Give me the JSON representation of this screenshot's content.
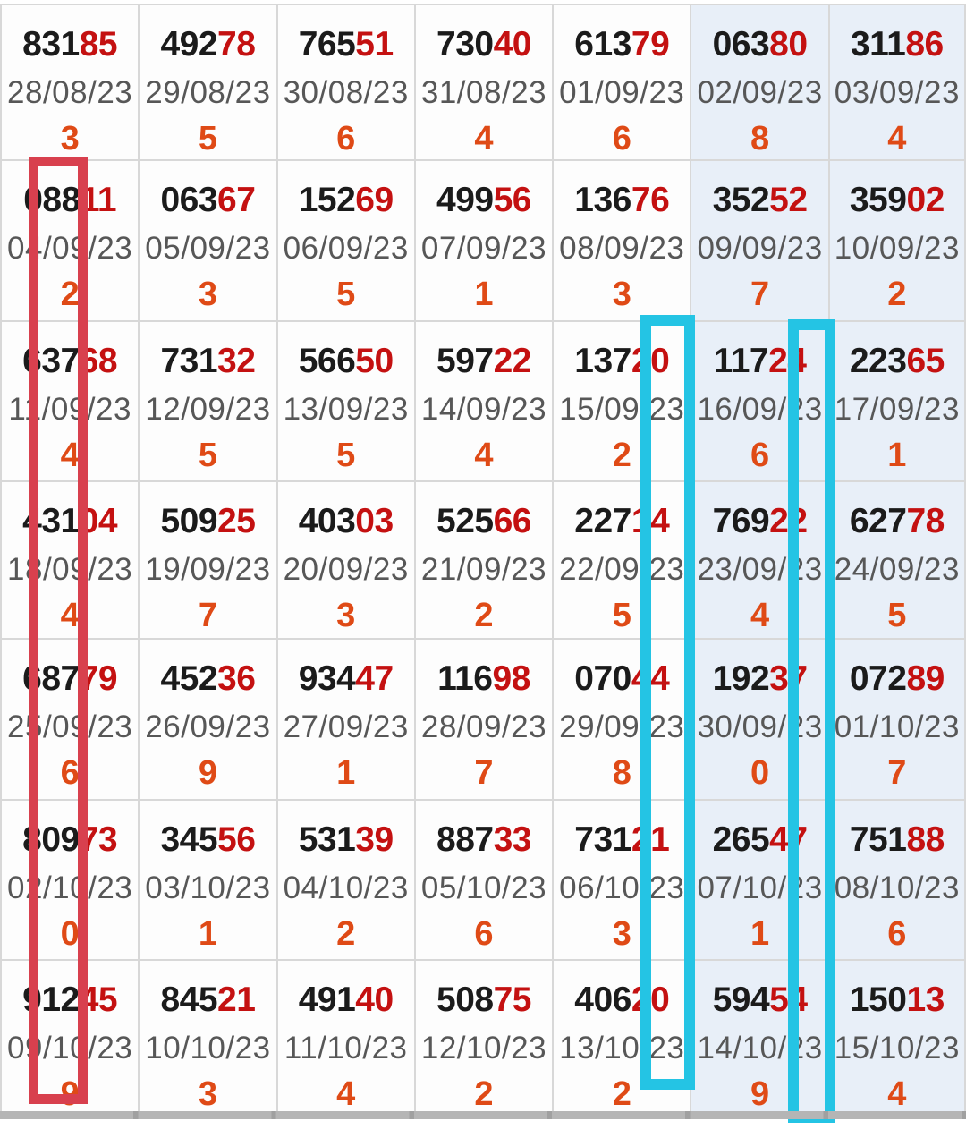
{
  "table": {
    "weekend_columns": [
      5,
      6
    ],
    "rows": [
      {
        "cells": [
          {
            "black": "831",
            "red": "85",
            "date": "28/08/23",
            "digit": "3"
          },
          {
            "black": "492",
            "red": "78",
            "date": "29/08/23",
            "digit": "5"
          },
          {
            "black": "765",
            "red": "51",
            "date": "30/08/23",
            "digit": "6"
          },
          {
            "black": "730",
            "red": "40",
            "date": "31/08/23",
            "digit": "4"
          },
          {
            "black": "613",
            "red": "79",
            "date": "01/09/23",
            "digit": "6"
          },
          {
            "black": "063",
            "red": "80",
            "date": "02/09/23",
            "digit": "8"
          },
          {
            "black": "311",
            "red": "86",
            "date": "03/09/23",
            "digit": "4"
          }
        ]
      },
      {
        "cells": [
          {
            "black": "088",
            "red": "11",
            "date": "04/09/23",
            "digit": "2"
          },
          {
            "black": "063",
            "red": "67",
            "date": "05/09/23",
            "digit": "3"
          },
          {
            "black": "152",
            "red": "69",
            "date": "06/09/23",
            "digit": "5"
          },
          {
            "black": "499",
            "red": "56",
            "date": "07/09/23",
            "digit": "1"
          },
          {
            "black": "136",
            "red": "76",
            "date": "08/09/23",
            "digit": "3"
          },
          {
            "black": "352",
            "red": "52",
            "date": "09/09/23",
            "digit": "7"
          },
          {
            "black": "359",
            "red": "02",
            "date": "10/09/23",
            "digit": "2"
          }
        ]
      },
      {
        "cells": [
          {
            "black": "637",
            "red": "68",
            "date": "11/09/23",
            "digit": "4"
          },
          {
            "black": "731",
            "red": "32",
            "date": "12/09/23",
            "digit": "5"
          },
          {
            "black": "566",
            "red": "50",
            "date": "13/09/23",
            "digit": "5"
          },
          {
            "black": "597",
            "red": "22",
            "date": "14/09/23",
            "digit": "4"
          },
          {
            "black": "137",
            "red": "20",
            "date": "15/09/23",
            "digit": "2"
          },
          {
            "black": "117",
            "red": "24",
            "date": "16/09/23",
            "digit": "6"
          },
          {
            "black": "223",
            "red": "65",
            "date": "17/09/23",
            "digit": "1"
          }
        ]
      },
      {
        "cells": [
          {
            "black": "431",
            "red": "04",
            "date": "18/09/23",
            "digit": "4"
          },
          {
            "black": "509",
            "red": "25",
            "date": "19/09/23",
            "digit": "7"
          },
          {
            "black": "403",
            "red": "03",
            "date": "20/09/23",
            "digit": "3"
          },
          {
            "black": "525",
            "red": "66",
            "date": "21/09/23",
            "digit": "2"
          },
          {
            "black": "227",
            "red": "14",
            "date": "22/09/23",
            "digit": "5"
          },
          {
            "black": "769",
            "red": "22",
            "date": "23/09/23",
            "digit": "4"
          },
          {
            "black": "627",
            "red": "78",
            "date": "24/09/23",
            "digit": "5"
          }
        ]
      },
      {
        "cells": [
          {
            "black": "687",
            "red": "79",
            "date": "25/09/23",
            "digit": "6"
          },
          {
            "black": "452",
            "red": "36",
            "date": "26/09/23",
            "digit": "9"
          },
          {
            "black": "934",
            "red": "47",
            "date": "27/09/23",
            "digit": "1"
          },
          {
            "black": "116",
            "red": "98",
            "date": "28/09/23",
            "digit": "7"
          },
          {
            "black": "070",
            "red": "44",
            "date": "29/09/23",
            "digit": "8"
          },
          {
            "black": "192",
            "red": "37",
            "date": "30/09/23",
            "digit": "0"
          },
          {
            "black": "072",
            "red": "89",
            "date": "01/10/23",
            "digit": "7"
          }
        ]
      },
      {
        "cells": [
          {
            "black": "809",
            "red": "73",
            "date": "02/10/23",
            "digit": "0"
          },
          {
            "black": "345",
            "red": "56",
            "date": "03/10/23",
            "digit": "1"
          },
          {
            "black": "531",
            "red": "39",
            "date": "04/10/23",
            "digit": "2"
          },
          {
            "black": "887",
            "red": "33",
            "date": "05/10/23",
            "digit": "6"
          },
          {
            "black": "731",
            "red": "21",
            "date": "06/10/23",
            "digit": "3"
          },
          {
            "black": "265",
            "red": "47",
            "date": "07/10/23",
            "digit": "1"
          },
          {
            "black": "751",
            "red": "88",
            "date": "08/10/23",
            "digit": "6"
          }
        ]
      },
      {
        "cells": [
          {
            "black": "912",
            "red": "45",
            "date": "09/10/23",
            "digit": "9"
          },
          {
            "black": "845",
            "red": "21",
            "date": "10/10/23",
            "digit": "3"
          },
          {
            "black": "491",
            "red": "40",
            "date": "11/10/23",
            "digit": "4"
          },
          {
            "black": "508",
            "red": "75",
            "date": "12/10/23",
            "digit": "2"
          },
          {
            "black": "406",
            "red": "20",
            "date": "13/10/23",
            "digit": "2"
          },
          {
            "black": "594",
            "red": "54",
            "date": "14/10/23",
            "digit": "9"
          },
          {
            "black": "150",
            "red": "13",
            "date": "15/10/23",
            "digit": "4"
          }
        ]
      }
    ]
  },
  "colors": {
    "red_tail_digit": "#c41111",
    "orange_digit": "#df4a16",
    "weekend_bg": "#e8eff8",
    "grid_line": "#d8d8d8",
    "red_annotation_box": "#d8404e",
    "cyan_annotation_box": "#24c4e4"
  }
}
